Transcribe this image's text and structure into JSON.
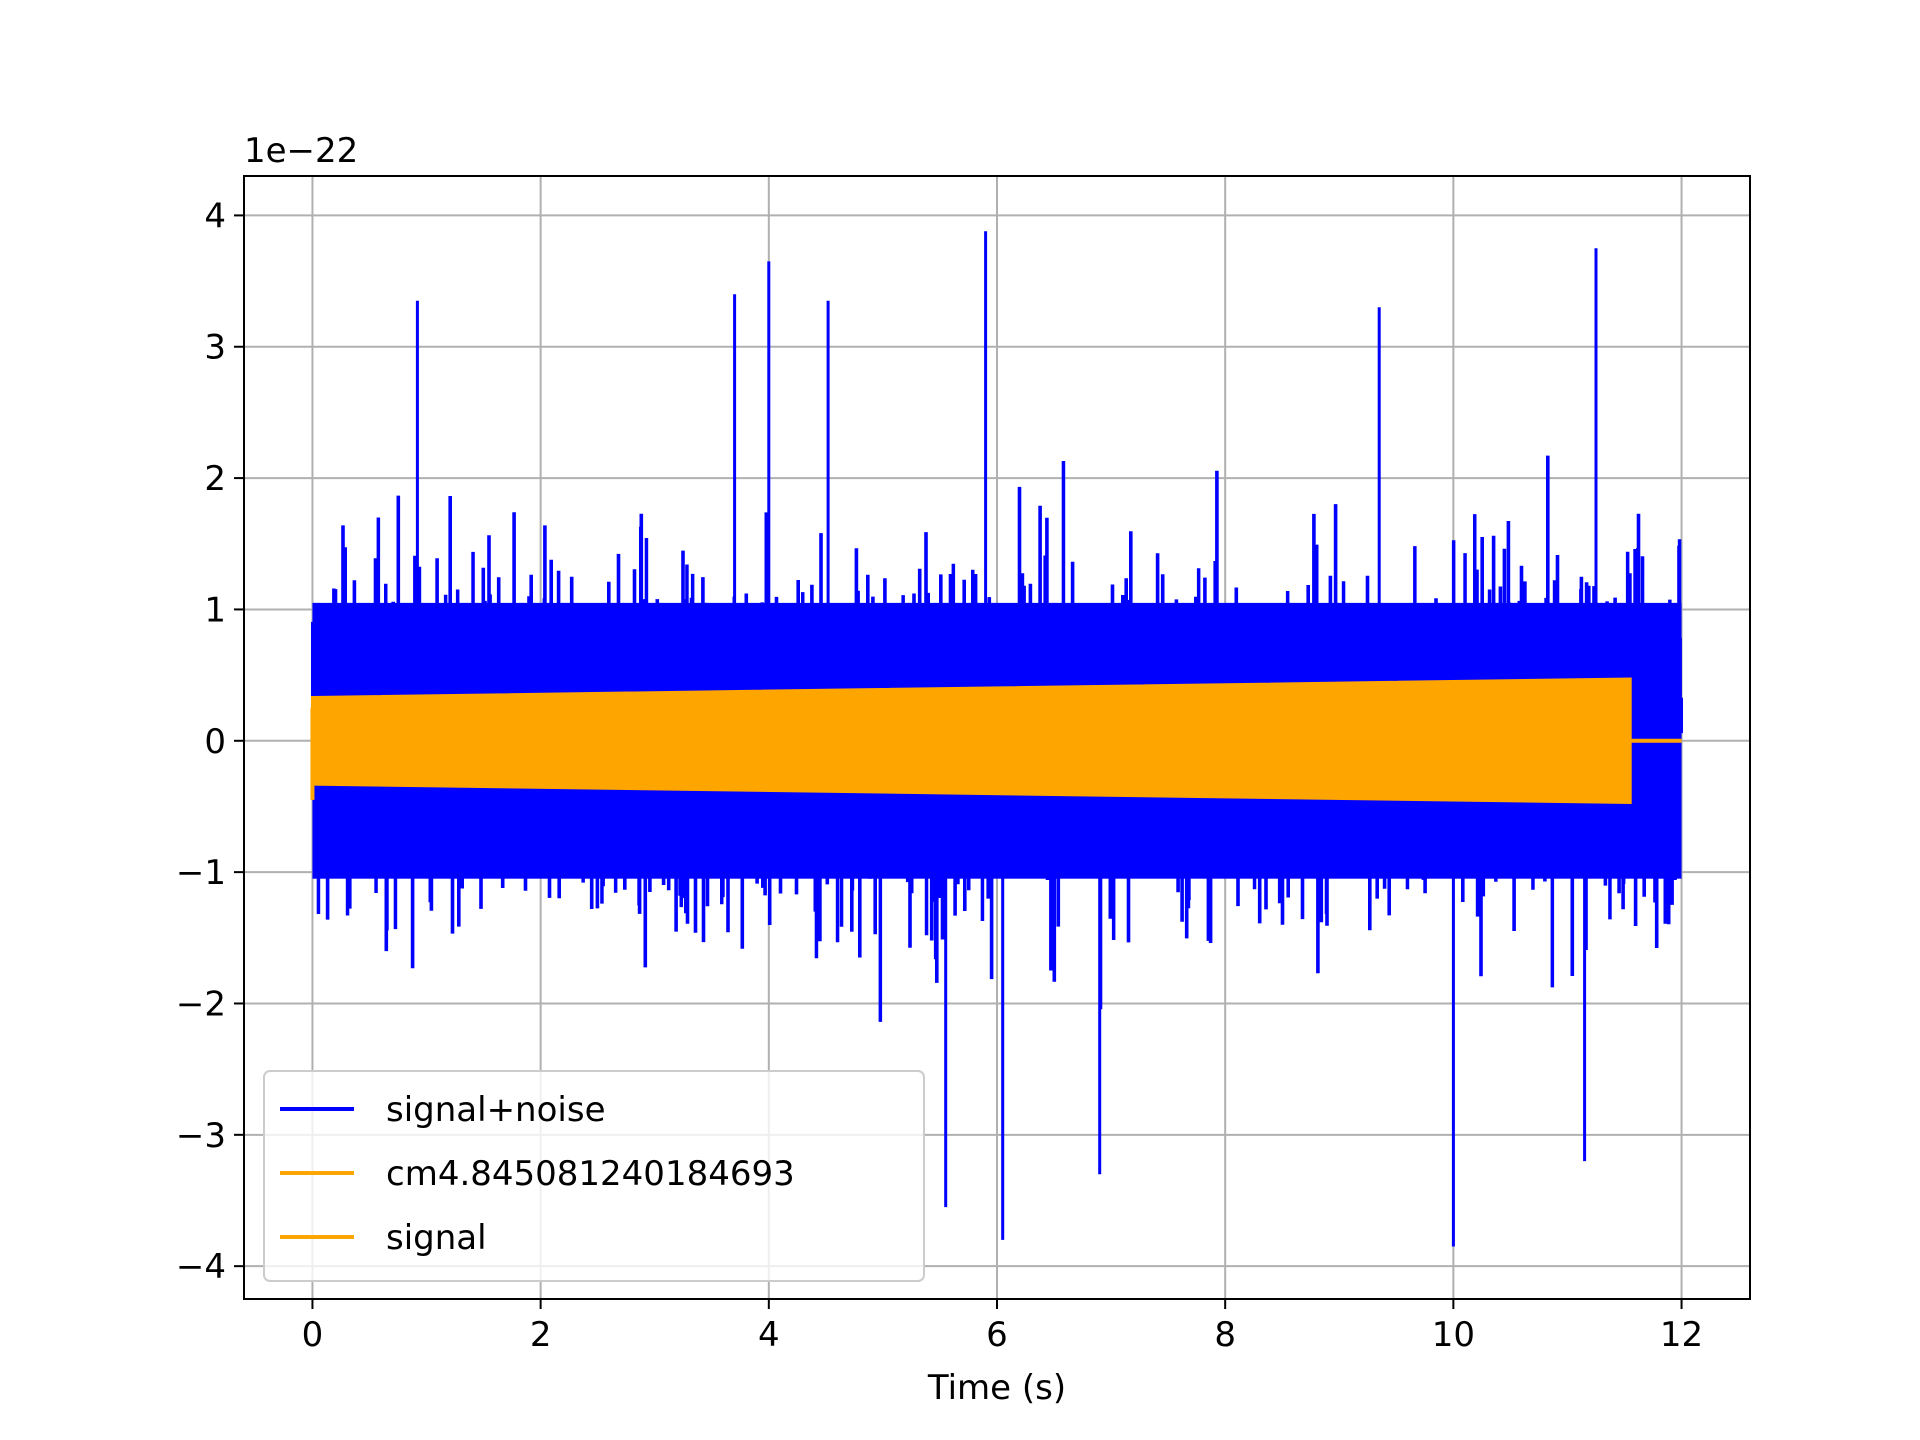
{
  "chart_data": {
    "type": "line",
    "title": "",
    "xlabel": "Time (s)",
    "ylabel": "",
    "y_offset_label": "1e−22",
    "xlim": [
      -0.6,
      12.6
    ],
    "ylim": [
      -4.25,
      4.3
    ],
    "x_ticks": [
      0,
      2,
      4,
      6,
      8,
      10,
      12
    ],
    "x_tick_labels": [
      "0",
      "2",
      "4",
      "6",
      "8",
      "10",
      "12"
    ],
    "y_ticks": [
      -4,
      -3,
      -2,
      -1,
      0,
      1,
      2,
      3,
      4
    ],
    "y_tick_labels": [
      "−4",
      "−3",
      "−2",
      "−1",
      "0",
      "1",
      "2",
      "3",
      "4"
    ],
    "grid": true,
    "legend_position": "lower-left",
    "series": [
      {
        "name": "signal+noise",
        "color": "#0000ff",
        "x_range": [
          0,
          12
        ],
        "envelope_typical": [
          -1.6,
          1.6
        ],
        "peaks": [
          {
            "x": 0.92,
            "y": 3.35
          },
          {
            "x": 3.7,
            "y": 3.4
          },
          {
            "x": 4.0,
            "y": 3.65
          },
          {
            "x": 4.52,
            "y": 3.35
          },
          {
            "x": 5.9,
            "y": 3.88
          },
          {
            "x": 9.35,
            "y": 3.3
          },
          {
            "x": 11.25,
            "y": 3.75
          }
        ],
        "troughs": [
          {
            "x": 5.55,
            "y": -3.55
          },
          {
            "x": 6.05,
            "y": -3.8
          },
          {
            "x": 6.9,
            "y": -3.3
          },
          {
            "x": 10.0,
            "y": -3.85
          },
          {
            "x": 11.15,
            "y": -3.2
          }
        ]
      },
      {
        "name": "cm4.845081240184693",
        "color": "#ffa500"
      },
      {
        "name": "signal",
        "color": "#ffa500",
        "x_range": [
          0,
          11.55
        ],
        "amplitude_start": 0.33,
        "amplitude_end": 0.47,
        "flat_after": [
          11.55,
          12
        ]
      }
    ]
  }
}
